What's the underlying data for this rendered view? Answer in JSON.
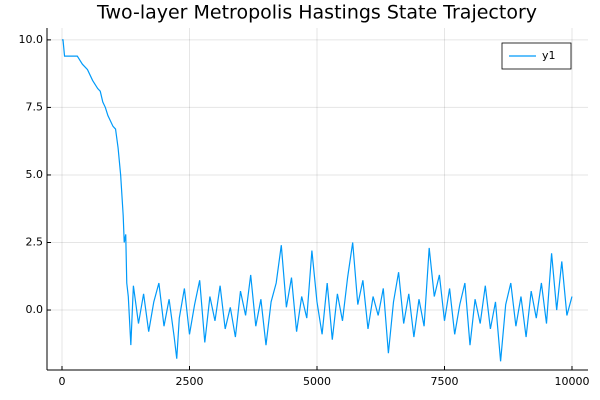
{
  "chart_data": {
    "type": "line",
    "title": "Two-layer Metropolis Hastings State Trajectory",
    "x": [
      0,
      20,
      50,
      300,
      400,
      500,
      600,
      700,
      750,
      800,
      850,
      900,
      1000,
      1050,
      1100,
      1150,
      1200,
      1220,
      1250,
      1270,
      1300,
      1350,
      1400,
      1500,
      1600,
      1700,
      1800,
      1900,
      2000,
      2100,
      2200,
      2250,
      2300,
      2400,
      2500,
      2600,
      2700,
      2800,
      2900,
      3000,
      3100,
      3200,
      3300,
      3400,
      3500,
      3600,
      3700,
      3800,
      3900,
      4000,
      4100,
      4200,
      4300,
      4400,
      4500,
      4600,
      4700,
      4800,
      4900,
      5000,
      5100,
      5200,
      5300,
      5400,
      5500,
      5600,
      5700,
      5800,
      5900,
      6000,
      6100,
      6200,
      6300,
      6400,
      6500,
      6600,
      6700,
      6800,
      6900,
      7000,
      7100,
      7200,
      7300,
      7400,
      7500,
      7600,
      7700,
      7800,
      7900,
      8000,
      8100,
      8200,
      8300,
      8400,
      8500,
      8600,
      8700,
      8800,
      8900,
      9000,
      9100,
      9200,
      9300,
      9400,
      9500,
      9600,
      9700,
      9800,
      9900,
      10000
    ],
    "series": [
      {
        "name": "y1",
        "color": "#009af9",
        "values": [
          10,
          10,
          9.4,
          9.4,
          9.1,
          8.9,
          8.5,
          8.2,
          8.1,
          7.7,
          7.5,
          7.2,
          6.8,
          6.7,
          6.0,
          5.0,
          3.5,
          2.5,
          2.8,
          1.0,
          0.5,
          -1.3,
          0.9,
          -0.5,
          0.6,
          -0.8,
          0.3,
          1.0,
          -0.6,
          0.4,
          -1.0,
          -1.8,
          -0.3,
          0.8,
          -0.9,
          0.2,
          1.1,
          -1.2,
          0.5,
          -0.4,
          0.9,
          -0.7,
          0.1,
          -1.0,
          0.7,
          -0.2,
          1.3,
          -0.6,
          0.4,
          -1.3,
          0.3,
          1.0,
          2.4,
          0.1,
          1.2,
          -0.8,
          0.5,
          -0.3,
          2.2,
          0.3,
          -0.9,
          1.0,
          -1.1,
          0.6,
          -0.4,
          1.2,
          2.5,
          0.2,
          1.1,
          -0.7,
          0.5,
          -0.2,
          0.8,
          -1.6,
          0.3,
          1.4,
          -0.5,
          0.6,
          -1.0,
          0.4,
          -0.6,
          2.3,
          0.5,
          1.3,
          -0.4,
          0.8,
          -0.9,
          0.2,
          1.0,
          -1.3,
          0.4,
          -0.5,
          0.9,
          -0.7,
          0.3,
          -1.9,
          0.2,
          1.0,
          -0.6,
          0.5,
          -1.0,
          0.7,
          -0.3,
          1.0,
          -0.5,
          2.1,
          0.0,
          1.8,
          -0.2,
          0.5
        ]
      }
    ],
    "xlim": [
      -294,
      10314
    ],
    "ylim": [
      -2.22,
      10.44
    ],
    "xticks": [
      0,
      2500,
      5000,
      7500,
      10000
    ],
    "yticks": [
      {
        "value": 0,
        "label": "0.0"
      },
      {
        "value": 2.5,
        "label": "2.5"
      },
      {
        "value": 5,
        "label": "5.0"
      },
      {
        "value": 7.5,
        "label": "7.5"
      },
      {
        "value": 10,
        "label": "10.0"
      }
    ],
    "grid": true,
    "legend": "top-right"
  }
}
